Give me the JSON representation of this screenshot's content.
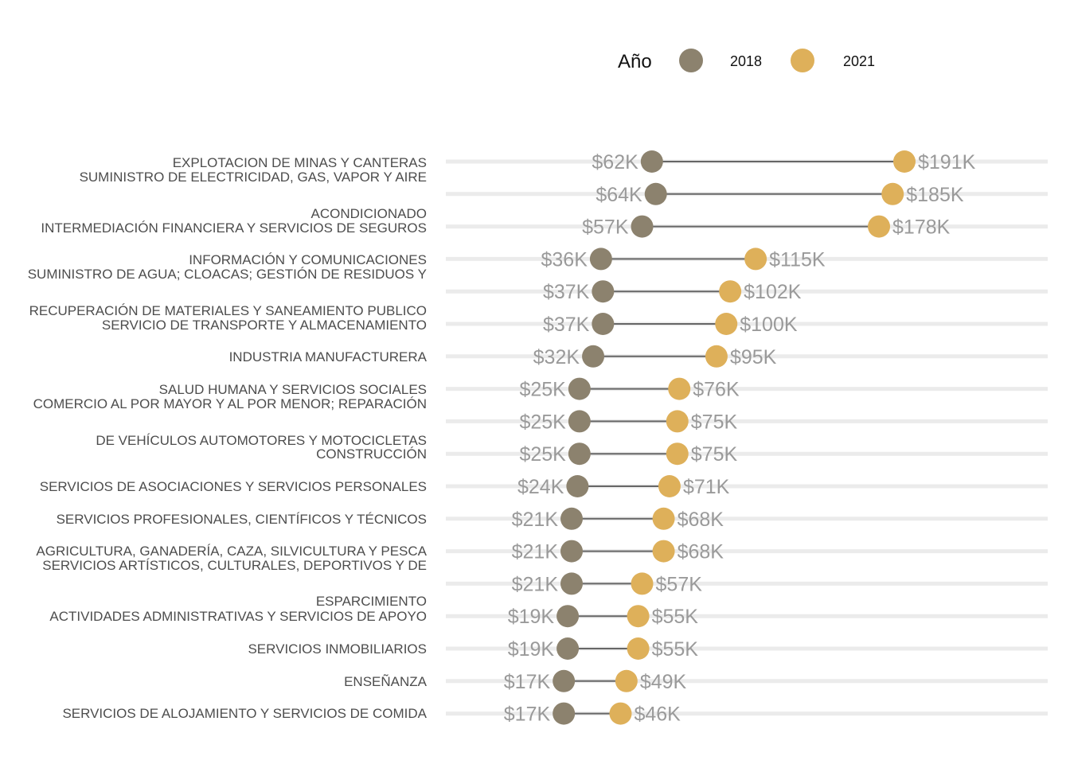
{
  "chart_data": {
    "type": "dumbbell",
    "title": "",
    "xlabel": "",
    "ylabel": "",
    "legend": {
      "title": "Año",
      "position": "top"
    },
    "colors": {
      "2018": "#8c826e",
      "2021": "#deb05a",
      "line": "#666666",
      "grid": "#ebebeb"
    },
    "series": [
      {
        "name": "2018",
        "color": "#8c826e"
      },
      {
        "name": "2021",
        "color": "#deb05a"
      }
    ],
    "xlim": [
      0,
      200
    ],
    "category_labels": [
      "EXPLOTACION DE MINAS Y CANTERAS",
      "SUMINISTRO DE ELECTRICIDAD, GAS, VAPOR Y AIRE",
      "ACONDICIONADO",
      "INTERMEDIACIÓN FINANCIERA Y SERVICIOS DE SEGUROS",
      "INFORMACIÓN Y COMUNICACIONES",
      "SUMINISTRO DE AGUA; CLOACAS; GESTIÓN DE RESIDUOS Y",
      "RECUPERACIÓN DE MATERIALES Y SANEAMIENTO PUBLICO",
      "SERVICIO DE TRANSPORTE Y ALMACENAMIENTO",
      "INDUSTRIA MANUFACTURERA",
      "SALUD HUMANA Y SERVICIOS SOCIALES",
      "COMERCIO AL POR MAYOR Y AL POR MENOR; REPARACIÓN",
      "DE VEHÍCULOS AUTOMOTORES Y MOTOCICLETAS",
      "CONSTRUCCIÓN",
      "SERVICIOS DE ASOCIACIONES Y SERVICIOS PERSONALES",
      "SERVICIOS PROFESIONALES, CIENTÍFICOS Y TÉCNICOS",
      "AGRICULTURA, GANADERÍA, CAZA, SILVICULTURA Y PESCA",
      "SERVICIOS ARTÍSTICOS, CULTURALES, DEPORTIVOS Y DE",
      "ESPARCIMIENTO",
      "ACTIVIDADES ADMINISTRATIVAS Y SERVICIOS DE APOYO",
      "SERVICIOS INMOBILIARIOS",
      "ENSEÑANZA",
      "SERVICIOS DE ALOJAMIENTO Y SERVICIOS DE COMIDA"
    ],
    "rows": [
      {
        "v2018": 62,
        "v2021": 191,
        "l2018": "$62K",
        "l2021": "$191K"
      },
      {
        "v2018": 64,
        "v2021": 185,
        "l2018": "$64K",
        "l2021": "$185K"
      },
      {
        "v2018": 57,
        "v2021": 178,
        "l2018": "$57K",
        "l2021": "$178K"
      },
      {
        "v2018": 36,
        "v2021": 115,
        "l2018": "$36K",
        "l2021": "$115K"
      },
      {
        "v2018": 37,
        "v2021": 102,
        "l2018": "$37K",
        "l2021": "$102K"
      },
      {
        "v2018": 37,
        "v2021": 100,
        "l2018": "$37K",
        "l2021": "$100K"
      },
      {
        "v2018": 32,
        "v2021": 95,
        "l2018": "$32K",
        "l2021": "$95K"
      },
      {
        "v2018": 25,
        "v2021": 76,
        "l2018": "$25K",
        "l2021": "$76K"
      },
      {
        "v2018": 25,
        "v2021": 75,
        "l2018": "$25K",
        "l2021": "$75K"
      },
      {
        "v2018": 25,
        "v2021": 75,
        "l2018": "$25K",
        "l2021": "$75K"
      },
      {
        "v2018": 24,
        "v2021": 71,
        "l2018": "$24K",
        "l2021": "$71K"
      },
      {
        "v2018": 21,
        "v2021": 68,
        "l2018": "$21K",
        "l2021": "$68K"
      },
      {
        "v2018": 21,
        "v2021": 68,
        "l2018": "$21K",
        "l2021": "$68K"
      },
      {
        "v2018": 21,
        "v2021": 57,
        "l2018": "$21K",
        "l2021": "$57K"
      },
      {
        "v2018": 19,
        "v2021": 55,
        "l2018": "$19K",
        "l2021": "$55K"
      },
      {
        "v2018": 19,
        "v2021": 55,
        "l2018": "$19K",
        "l2021": "$55K"
      },
      {
        "v2018": 17,
        "v2021": 49,
        "l2018": "$17K",
        "l2021": "$49K"
      },
      {
        "v2018": 17,
        "v2021": 46,
        "l2018": "$17K",
        "l2021": "$46K"
      }
    ]
  }
}
